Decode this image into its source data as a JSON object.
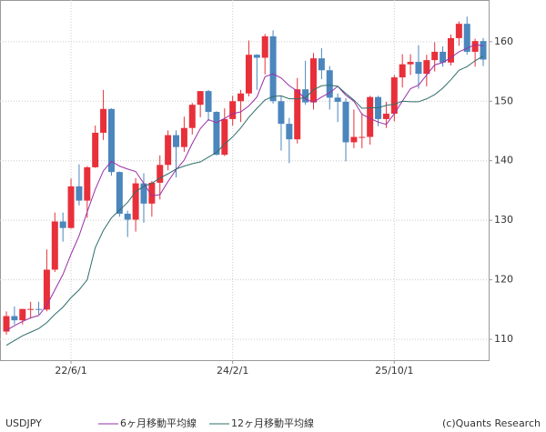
{
  "chart_data": {
    "type": "candlestick",
    "title": "USDJPY",
    "credit": "(c)Quants Research",
    "x": [
      null,
      null,
      null,
      null,
      null,
      null,
      null,
      null,
      "22/6/1",
      null,
      null,
      null,
      null,
      null,
      null,
      null,
      null,
      null,
      null,
      null,
      null,
      null,
      null,
      null,
      null,
      null,
      null,
      null,
      "24/2/1",
      null,
      null,
      null,
      null,
      null,
      null,
      null,
      null,
      null,
      null,
      null,
      null,
      null,
      null,
      null,
      null,
      null,
      null,
      null,
      "25/10/1",
      null,
      null,
      null,
      null,
      null,
      null,
      null,
      null,
      null,
      null,
      null
    ],
    "open": [
      111.3,
      113.9,
      113.2,
      115.1,
      115.1,
      115.0,
      121.7,
      129.8,
      128.7,
      135.7,
      133.3,
      138.9,
      144.7,
      148.7,
      138.1,
      131.1,
      130.1,
      136.2,
      132.8,
      136.3,
      139.3,
      144.3,
      142.3,
      145.5,
      149.4,
      151.7,
      148.2,
      141.0,
      147.0,
      150.0,
      151.3,
      157.8,
      157.3,
      160.9,
      150.0,
      146.2,
      143.6,
      152.0,
      149.8,
      157.2,
      155.2,
      150.6,
      149.9,
      143.1,
      144.0,
      144.0,
      150.7,
      147.0,
      147.9,
      154.0,
      156.2,
      156.6,
      154.6,
      156.9,
      158.3,
      156.5,
      160.6,
      163.0,
      158.3,
      160.1
    ],
    "high": [
      114.7,
      115.5,
      115.1,
      116.3,
      116.3,
      125.1,
      131.3,
      131.3,
      137.0,
      139.4,
      139.1,
      145.9,
      151.9,
      148.8,
      138.2,
      131.6,
      137.1,
      137.9,
      136.6,
      140.9,
      145.1,
      145.1,
      147.4,
      149.7,
      151.7,
      151.9,
      148.3,
      148.8,
      150.9,
      151.9,
      160.2,
      157.9,
      161.3,
      161.9,
      150.9,
      147.2,
      153.9,
      156.8,
      158.1,
      158.9,
      155.9,
      151.3,
      150.5,
      148.6,
      148.0,
      150.9,
      150.9,
      149.9,
      154.4,
      157.9,
      157.9,
      159.4,
      157.8,
      159.9,
      159.2,
      161.2,
      163.4,
      164.2,
      160.5,
      160.6
    ],
    "low": [
      110.8,
      112.5,
      112.5,
      113.5,
      114.2,
      114.7,
      121.3,
      126.4,
      128.6,
      132.5,
      130.4,
      138.8,
      143.5,
      137.5,
      130.6,
      127.2,
      128.1,
      129.6,
      130.6,
      133.5,
      138.4,
      137.2,
      141.5,
      144.4,
      147.3,
      146.7,
      140.9,
      140.8,
      145.9,
      146.5,
      150.8,
      151.9,
      154.5,
      149.6,
      141.7,
      139.6,
      142.9,
      149.4,
      148.6,
      153.7,
      148.6,
      146.5,
      139.9,
      142.1,
      142.1,
      142.7,
      145.8,
      145.5,
      146.6,
      152.3,
      154.4,
      152.1,
      152.5,
      155.0,
      155.8,
      156.0,
      159.3,
      157.8,
      155.8,
      155.9
    ],
    "close": [
      113.9,
      113.2,
      115.1,
      115.1,
      115.0,
      121.7,
      129.8,
      128.7,
      135.7,
      133.3,
      138.9,
      144.7,
      148.7,
      138.1,
      131.1,
      130.1,
      136.2,
      132.8,
      136.3,
      139.3,
      144.3,
      142.3,
      145.5,
      149.4,
      151.7,
      148.2,
      141.0,
      147.0,
      150.0,
      151.3,
      157.8,
      157.3,
      160.9,
      150.0,
      146.2,
      143.6,
      152.0,
      149.8,
      157.2,
      155.2,
      150.6,
      149.9,
      143.1,
      144.0,
      144.0,
      150.7,
      147.0,
      147.9,
      154.0,
      156.2,
      156.6,
      154.6,
      156.9,
      158.3,
      156.5,
      160.6,
      163.0,
      158.3,
      160.1,
      157.0
    ],
    "up_color": "#e8303a",
    "down_color": "#4b86bd",
    "series": [
      {
        "name": "6ヶ月移動平均線",
        "color": "#9a2fa8",
        "values": [
          111.5,
          112.3,
          113.0,
          113.6,
          114.0,
          115.7,
          118.3,
          120.9,
          124.3,
          127.4,
          131.4,
          135.2,
          138.3,
          139.9,
          139.1,
          138.6,
          138.2,
          136.2,
          134.1,
          134.3,
          136.5,
          138.5,
          140.1,
          142.9,
          145.4,
          146.9,
          146.4,
          147.1,
          147.9,
          148.2,
          149.2,
          150.7,
          154.1,
          154.6,
          153.9,
          152.6,
          151.7,
          150.4,
          149.8,
          150.7,
          151.4,
          152.5,
          151.0,
          150.0,
          147.8,
          147.1,
          146.5,
          146.1,
          147.9,
          150.0,
          152.1,
          152.7,
          154.4,
          156.1,
          156.5,
          157.3,
          158.3,
          158.9,
          159.5,
          159.3
        ]
      },
      {
        "name": "12ヶ月移動平均線",
        "color": "#2f6f6a",
        "values": [
          109.0,
          109.8,
          110.6,
          111.2,
          111.8,
          112.8,
          114.2,
          115.4,
          117.0,
          118.3,
          120.0,
          125.4,
          128.3,
          130.4,
          131.7,
          133.0,
          134.8,
          135.7,
          136.2,
          137.1,
          137.8,
          138.6,
          139.1,
          139.5,
          139.8,
          140.6,
          141.4,
          142.8,
          144.0,
          145.5,
          147.3,
          148.8,
          150.2,
          150.8,
          150.9,
          150.4,
          150.4,
          150.6,
          151.9,
          152.6,
          152.7,
          152.5,
          151.3,
          150.2,
          148.8,
          148.9,
          148.9,
          149.3,
          149.5,
          150.0,
          149.9,
          149.9,
          150.4,
          151.1,
          152.2,
          153.6,
          155.2,
          155.8,
          156.8,
          157.6
        ]
      }
    ],
    "ylim": [
      106.5,
      167
    ],
    "yticks": [
      110,
      120,
      130,
      140,
      150,
      160
    ],
    "grid": true
  }
}
